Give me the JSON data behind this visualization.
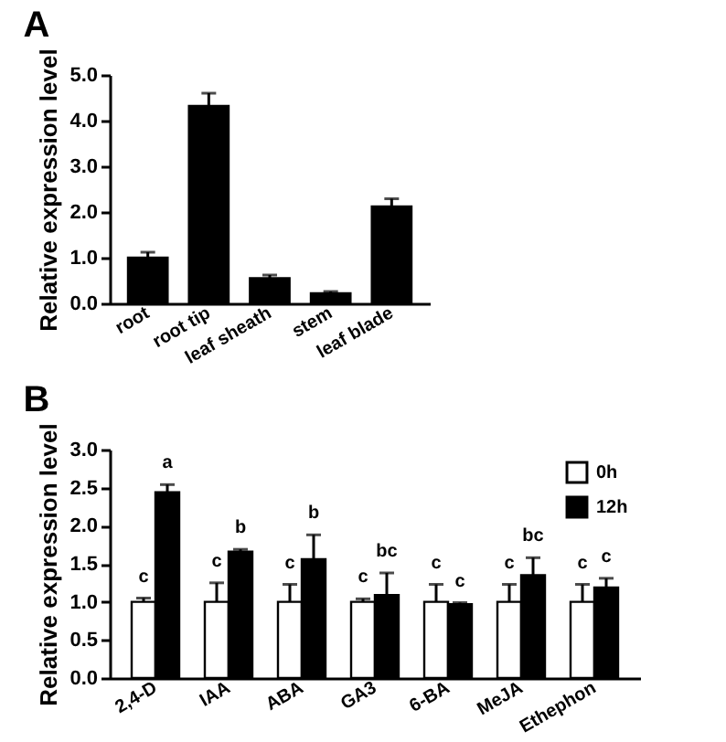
{
  "chart_data": [
    {
      "type": "bar",
      "title": "A",
      "ylabel": "Relative expression level",
      "categories": [
        "root",
        "root tip",
        "leaf sheath",
        "stem",
        "leaf blade"
      ],
      "series": [
        {
          "color": "#000000",
          "values": [
            1.0,
            4.32,
            0.55,
            0.22,
            2.12
          ],
          "errors": [
            [
              1.0,
              1.12
            ],
            [
              4.32,
              4.6
            ],
            [
              0.55,
              0.62
            ],
            [
              0.22,
              0.26
            ],
            [
              2.12,
              2.29
            ]
          ]
        }
      ],
      "ylim": [
        0,
        5
      ],
      "yticks": [
        {
          "value": 0,
          "label": "0.0"
        },
        {
          "value": 1,
          "label": "1.0"
        },
        {
          "value": 2,
          "label": "2.0"
        },
        {
          "value": 3,
          "label": "3.0"
        },
        {
          "value": 4,
          "label": "4.0"
        },
        {
          "value": 5,
          "label": "5.0"
        }
      ]
    },
    {
      "type": "bar",
      "title": "B",
      "ylabel": "Relative expression level",
      "categories": [
        "2,4-D",
        "IAA",
        "ABA",
        "GA3",
        "6-BA",
        "MeJA",
        "Ethephon"
      ],
      "series": [
        {
          "name": "0h",
          "color": "#ffffff",
          "values": [
            1.0,
            1.0,
            1.0,
            1.0,
            1.0,
            1.0,
            1.0
          ],
          "errors": [
            [
              1.0,
              1.05
            ],
            [
              1.0,
              1.25
            ],
            [
              1.0,
              1.23
            ],
            [
              1.0,
              1.04
            ],
            [
              1.0,
              1.23
            ],
            [
              1.0,
              1.23
            ],
            [
              1.0,
              1.23
            ]
          ],
          "value_labels": [
            "c",
            "c",
            "c",
            "c",
            "c",
            "c",
            "c"
          ]
        },
        {
          "name": "12h",
          "color": "#000000",
          "values": [
            2.44,
            1.66,
            1.56,
            1.09,
            0.97,
            1.35,
            1.19
          ],
          "errors": [
            [
              2.44,
              2.54
            ],
            [
              1.66,
              1.69
            ],
            [
              1.56,
              1.88
            ],
            [
              1.09,
              1.38
            ],
            [
              0.97,
              0.99
            ],
            [
              1.35,
              1.58
            ],
            [
              1.19,
              1.31
            ]
          ],
          "value_labels": [
            "a",
            "b",
            "b",
            "bc",
            "c",
            "bc",
            "c"
          ]
        }
      ],
      "ylim": [
        0,
        3
      ],
      "yticks": [
        {
          "value": 0,
          "label": "0.0"
        },
        {
          "value": 0.5,
          "label": "0.5"
        },
        {
          "value": 1,
          "label": "1.0"
        },
        {
          "value": 1.5,
          "label": "1.5"
        },
        {
          "value": 2,
          "label": "2.0"
        },
        {
          "value": 2.5,
          "label": "2.5"
        },
        {
          "value": 3,
          "label": "3.0"
        }
      ],
      "legend": "top right"
    }
  ]
}
